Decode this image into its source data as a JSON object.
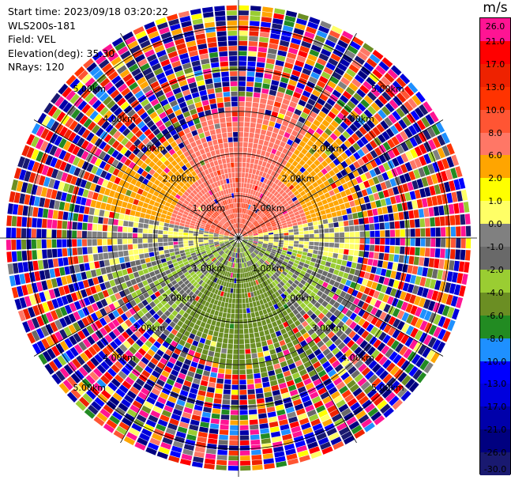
{
  "info": {
    "start_time": "Start time: 2023/09/18 03:20:22",
    "instrument": "WLS200s-181",
    "field": "Field: VEL",
    "elevation": "Elevation(deg): 35.30",
    "nrays": "NRays: 120"
  },
  "colorbar": {
    "title": "m/s",
    "labels": [
      "26.0",
      "21.0",
      "17.0",
      "13.0",
      "10.0",
      "8.0",
      "6.0",
      "2.0",
      "1.0",
      "0.0",
      "-1.0",
      "-2.0",
      "-4.0",
      "-6.0",
      "-8.0",
      "-10.0",
      "-13.0",
      "-17.0",
      "-21.0",
      "-26.0",
      "-30.0"
    ],
    "colors": [
      "#ff1493",
      "#ff0000",
      "#ee2200",
      "#ff3300",
      "#ff5533",
      "#ff7766",
      "#ffa500",
      "#ffff00",
      "#ffff66",
      "#808080",
      "#696969",
      "#9acd32",
      "#6b8e23",
      "#228b22",
      "#1e90ff",
      "#0000ff",
      "#0000dd",
      "#0000aa",
      "#000080",
      "#191970"
    ]
  },
  "chart_data": {
    "type": "polar-ppi",
    "field": "VEL",
    "units": "m/s",
    "nrays": 120,
    "range_rings_km": [
      1.0,
      2.0,
      3.0,
      4.0,
      5.0
    ],
    "ring_label_texts": [
      "1.00km",
      "2.00km",
      "3.00km",
      "4.00km",
      "5.00km"
    ],
    "max_range_km": 5.6,
    "spokes_deg": [
      0,
      30,
      60,
      90,
      120,
      150,
      180,
      210,
      240,
      270,
      300,
      330
    ],
    "color_scale": [
      -30,
      -26,
      -21,
      -17,
      -13,
      -10,
      -8,
      -6,
      -4,
      -2,
      -1,
      0,
      1,
      2,
      6,
      8,
      10,
      13,
      17,
      21,
      26
    ],
    "pattern": {
      "north_sector_velocity_mps": 6.0,
      "south_sector_velocity_mps": -6.0,
      "center_positive_mps": 8.0,
      "center_negative_mps": -2.0,
      "noise_beyond_km": 3.2
    }
  }
}
